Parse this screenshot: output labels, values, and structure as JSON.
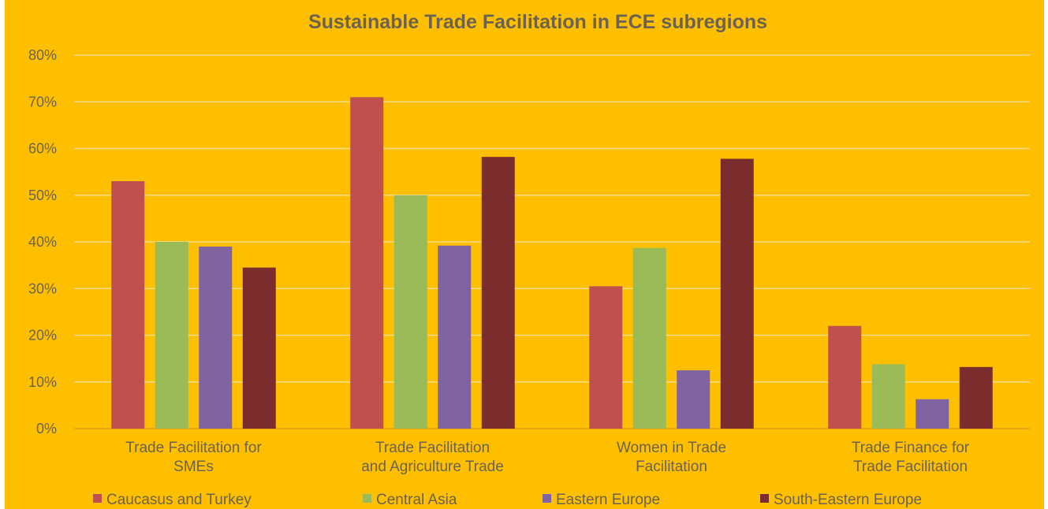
{
  "chart_data": {
    "type": "bar",
    "title": "Sustainable Trade Facilitation in ECE subregions",
    "categories": [
      [
        "Trade Facilitation for",
        "SMEs"
      ],
      [
        "Trade Facilitation",
        "and Agriculture Trade"
      ],
      [
        "Women in Trade",
        "Facilitation"
      ],
      [
        "Trade Finance for",
        "Trade Facilitation"
      ]
    ],
    "series": [
      {
        "name": "Caucasus and Turkey",
        "color": "#c0504d",
        "values": [
          53,
          71,
          30.5,
          22
        ]
      },
      {
        "name": "Central Asia",
        "color": "#9bbb59",
        "values": [
          40,
          50,
          38.7,
          13.8
        ]
      },
      {
        "name": "Eastern Europe",
        "color": "#8064a2",
        "values": [
          39,
          39.2,
          12.5,
          6.3
        ]
      },
      {
        "name": "South-Eastern Europe",
        "color": "#7b2c2c",
        "values": [
          34.5,
          58.2,
          57.8,
          13.2
        ]
      }
    ],
    "ylim": [
      0,
      80
    ],
    "yticks": [
      "0%",
      "10%",
      "20%",
      "30%",
      "40%",
      "50%",
      "60%",
      "70%",
      "80%"
    ],
    "grid": true,
    "legend_position": "bottom",
    "background": "#fdbf00"
  }
}
